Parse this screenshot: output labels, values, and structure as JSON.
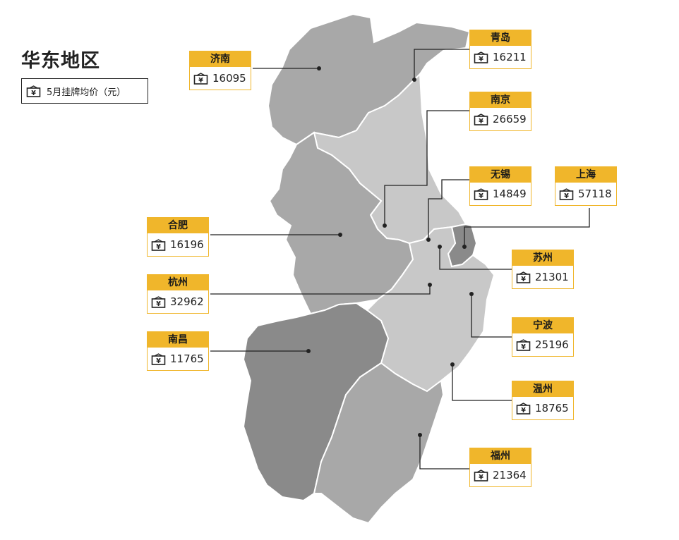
{
  "title": "华东地区",
  "legend": {
    "icon": "price-tag-icon",
    "label": "5月挂牌均价（元）"
  },
  "colors": {
    "accent": "#f0b62b",
    "region_dark": "#8a8a8a",
    "region_mid": "#a8a8a8",
    "region_light": "#c8c8c8",
    "line": "#222222"
  },
  "cities": [
    {
      "name": "济南",
      "price": "16095"
    },
    {
      "name": "青岛",
      "price": "16211"
    },
    {
      "name": "南京",
      "price": "26659"
    },
    {
      "name": "无锡",
      "price": "14849"
    },
    {
      "name": "上海",
      "price": "57118"
    },
    {
      "name": "合肥",
      "price": "16196"
    },
    {
      "name": "苏州",
      "price": "21301"
    },
    {
      "name": "杭州",
      "price": "32962"
    },
    {
      "name": "宁波",
      "price": "25196"
    },
    {
      "name": "南昌",
      "price": "11765"
    },
    {
      "name": "温州",
      "price": "18765"
    },
    {
      "name": "福州",
      "price": "21364"
    }
  ]
}
